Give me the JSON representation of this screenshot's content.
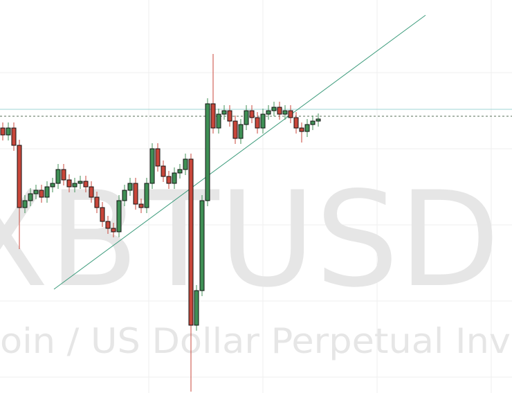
{
  "chart_data": {
    "type": "candlestick",
    "watermark": "XBTUSD",
    "watermark_subtitle": "oin / US Dollar Perpetual Inv",
    "up_color": "#3f8f55",
    "down_color": "#c8463a",
    "ylim": [
      0,
      568
    ],
    "open": [
      383,
      373,
      383,
      358,
      268,
      278,
      288,
      293,
      283,
      298,
      303,
      323,
      308,
      298,
      303,
      306,
      298,
      283,
      268,
      248,
      238,
      233,
      278,
      293,
      303,
      273,
      268,
      303,
      353,
      328,
      313,
      303,
      318,
      323,
      338,
      98,
      148,
      278,
      418,
      383,
      403,
      408,
      393,
      368,
      388,
      408,
      398,
      383,
      403,
      408,
      413,
      403,
      408,
      398,
      383,
      378,
      388,
      393
    ],
    "high": [
      391,
      391,
      391,
      366,
      286,
      296,
      301,
      301,
      306,
      311,
      331,
      331,
      316,
      311,
      314,
      314,
      306,
      291,
      276,
      256,
      246,
      286,
      301,
      311,
      311,
      281,
      311,
      361,
      361,
      336,
      321,
      326,
      331,
      346,
      346,
      156,
      286,
      426,
      490,
      411,
      416,
      416,
      401,
      396,
      416,
      416,
      406,
      411,
      416,
      421,
      421,
      416,
      416,
      406,
      391,
      396,
      401,
      404
    ],
    "low": [
      365,
      365,
      350,
      208,
      260,
      270,
      280,
      275,
      275,
      290,
      295,
      300,
      290,
      290,
      295,
      290,
      275,
      260,
      240,
      230,
      225,
      225,
      270,
      285,
      265,
      260,
      260,
      295,
      320,
      305,
      295,
      295,
      310,
      315,
      2,
      90,
      140,
      270,
      375,
      375,
      395,
      385,
      360,
      360,
      380,
      390,
      375,
      375,
      395,
      400,
      395,
      395,
      390,
      375,
      362,
      370,
      380,
      385
    ],
    "close": [
      373,
      383,
      358,
      268,
      278,
      288,
      293,
      283,
      298,
      303,
      323,
      308,
      298,
      303,
      306,
      298,
      283,
      268,
      248,
      238,
      233,
      278,
      293,
      303,
      273,
      268,
      303,
      353,
      328,
      313,
      303,
      318,
      323,
      338,
      98,
      148,
      278,
      418,
      383,
      403,
      408,
      393,
      368,
      388,
      408,
      398,
      383,
      403,
      408,
      413,
      403,
      408,
      398,
      383,
      378,
      388,
      393,
      396
    ]
  }
}
